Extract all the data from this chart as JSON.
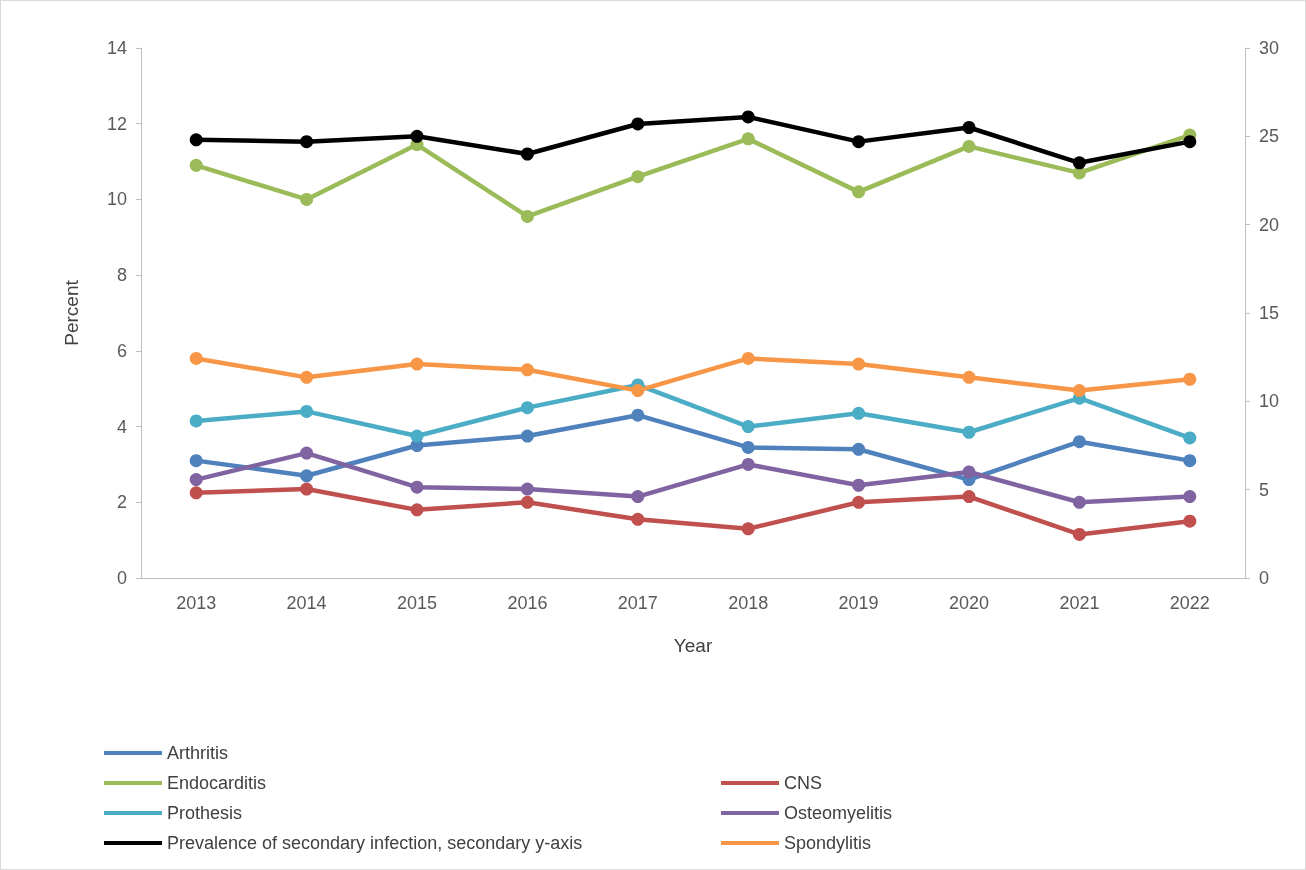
{
  "chart_data": {
    "type": "line",
    "xlabel": "Year",
    "ylabel": "Percent",
    "categories": [
      "2013",
      "2014",
      "2015",
      "2016",
      "2017",
      "2018",
      "2019",
      "2020",
      "2021",
      "2022"
    ],
    "series": [
      {
        "name": "Arthritis",
        "color": "#4f81bd",
        "values": [
          3.1,
          2.7,
          3.5,
          3.75,
          4.3,
          3.45,
          3.4,
          2.6,
          3.6,
          3.1
        ]
      },
      {
        "name": "CNS",
        "color": "#c0504d",
        "values": [
          2.25,
          2.35,
          1.8,
          2.0,
          1.55,
          1.3,
          2.0,
          2.15,
          1.15,
          1.5
        ]
      },
      {
        "name": "Endocarditis",
        "color": "#9bbb59",
        "values": [
          10.9,
          10.0,
          11.45,
          9.55,
          10.6,
          11.6,
          10.2,
          11.4,
          10.7,
          11.7
        ]
      },
      {
        "name": "Osteomyelitis",
        "color": "#8064a2",
        "values": [
          2.6,
          3.3,
          2.4,
          2.35,
          2.15,
          3.0,
          2.45,
          2.8,
          2.0,
          2.15
        ]
      },
      {
        "name": "Prothesis",
        "color": "#4bacc6",
        "values": [
          4.15,
          4.4,
          3.75,
          4.5,
          5.1,
          4.0,
          4.35,
          3.85,
          4.75,
          3.7
        ]
      },
      {
        "name": "Spondylitis",
        "color": "#f79646",
        "values": [
          5.8,
          5.3,
          5.65,
          5.5,
          4.95,
          5.8,
          5.65,
          5.3,
          4.95,
          5.25
        ]
      },
      {
        "name": "Prevalence of secondary infection, secondary y-axis",
        "color": "#000000",
        "axis": "y2",
        "values": [
          24.8,
          24.7,
          25.0,
          24.0,
          25.7,
          26.1,
          24.7,
          25.5,
          23.5,
          24.7
        ]
      }
    ],
    "ylim": [
      0,
      14
    ],
    "yticks": [
      0,
      2,
      4,
      6,
      8,
      10,
      12,
      14
    ],
    "y2lim": [
      0,
      30
    ],
    "y2ticks": [
      0,
      5,
      10,
      15,
      20,
      25,
      30
    ],
    "grid": false,
    "legend": "bottom",
    "marker": "circle",
    "line_style": "solid"
  }
}
